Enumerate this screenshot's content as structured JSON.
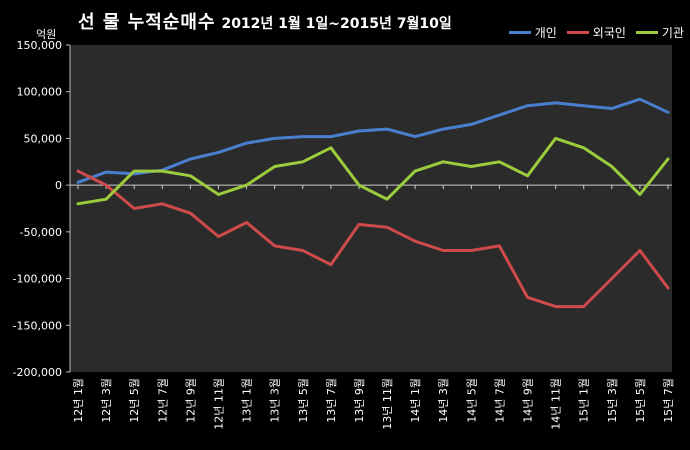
{
  "chart_data": {
    "type": "line",
    "title": "선 물 누적순매수",
    "subtitle": "2012년 1월 1일~2015년 7월10일",
    "ylabel": "억원",
    "xlabel": "",
    "ylim": [
      -200000,
      150000
    ],
    "yticks": [
      150000,
      100000,
      50000,
      0,
      -50000,
      -100000,
      -150000,
      -200000
    ],
    "ytick_labels": [
      "150,000",
      "100,000",
      "50,000",
      "0",
      "-50,000",
      "-100,000",
      "-150,000",
      "-200,000"
    ],
    "x": [
      "12년 1월",
      "12년 3월",
      "12년 5월",
      "12년 7월",
      "12년 9월",
      "12년 11월",
      "13년 1월",
      "13년 3월",
      "13년 5월",
      "13년 7월",
      "13년 9월",
      "13년 11월",
      "14년 1월",
      "14년 3월",
      "14년 5월",
      "14년 7월",
      "14년 9월",
      "14년 11월",
      "15년 1월",
      "15년 3월",
      "15년 5월",
      "15년 7월"
    ],
    "grid": false,
    "legend_position": "top-right",
    "series": [
      {
        "name": "개인",
        "color": "#4a7fcf",
        "values": [
          3000,
          14000,
          12000,
          16000,
          28000,
          35000,
          45000,
          50000,
          52000,
          52000,
          58000,
          60000,
          52000,
          60000,
          65000,
          75000,
          85000,
          88000,
          85000,
          82000,
          92000,
          78000
        ]
      },
      {
        "name": "외국인",
        "color": "#cf4a4a",
        "values": [
          15000,
          0,
          -25000,
          -20000,
          -30000,
          -55000,
          -40000,
          -65000,
          -70000,
          -85000,
          -42000,
          -45000,
          -60000,
          -70000,
          -70000,
          -65000,
          -120000,
          -130000,
          -130000,
          -100000,
          -70000,
          -110000
        ]
      },
      {
        "name": "기관",
        "color": "#9ccc3c",
        "values": [
          -20000,
          -15000,
          15000,
          15000,
          10000,
          -10000,
          0,
          20000,
          25000,
          40000,
          0,
          -15000,
          15000,
          25000,
          20000,
          25000,
          10000,
          50000,
          40000,
          20000,
          -10000,
          28000
        ]
      }
    ]
  }
}
